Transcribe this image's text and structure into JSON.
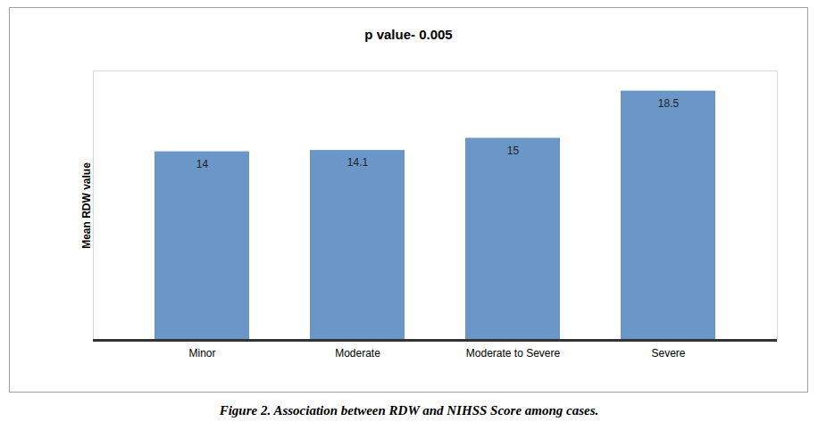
{
  "chart_data": {
    "type": "bar",
    "title": "p value- 0.005",
    "ylabel": "Mean RDW value",
    "categories": [
      "Minor",
      "Moderate",
      "Moderate to Severe",
      "Severe"
    ],
    "values": [
      14,
      14.1,
      15,
      18.5
    ],
    "color": "#6a96c8",
    "ylim": [
      0,
      20
    ],
    "yticks": [],
    "tick_labels": "x",
    "data_labels": true,
    "grid": false,
    "caption": "Figure 2. Association between RDW and NIHSS Score among cases."
  }
}
